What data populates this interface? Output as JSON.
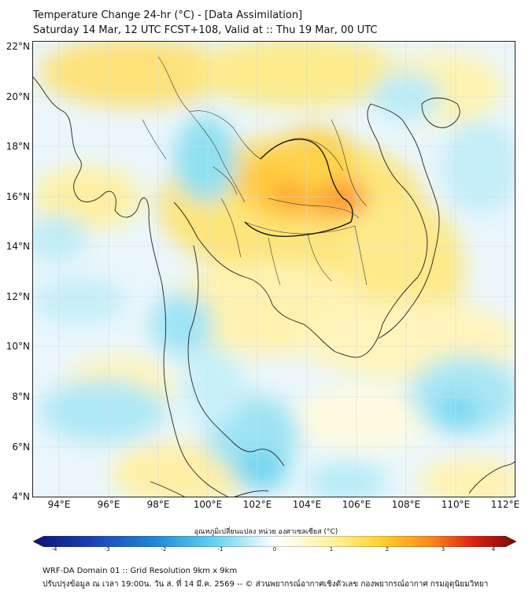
{
  "header": {
    "title": "Temperature Change 24-hr (°C) - [Data Assimilation]",
    "subtitle": "Saturday 14 Mar, 12 UTC FCST+108, Valid at :: Thu 19 Mar, 00 UTC"
  },
  "map": {
    "lat_labels": [
      "22°N",
      "20°N",
      "18°N",
      "16°N",
      "14°N",
      "12°N",
      "10°N",
      "8°N",
      "6°N",
      "4°N"
    ],
    "lon_labels": [
      "94°E",
      "96°E",
      "98°E",
      "100°E",
      "102°E",
      "104°E",
      "106°E",
      "108°E",
      "110°E",
      "112°E"
    ],
    "lat_range": [
      4,
      22.3
    ],
    "lon_range": [
      93,
      112.3
    ]
  },
  "colorbar": {
    "caption": "อุณหภูมิเปลี่ยนแปลง หน่วย องศาเซลเซียส (°C)",
    "ticks": [
      "-4",
      "-3",
      "-2",
      "-1",
      "0",
      "1",
      "2",
      "3",
      "4"
    ],
    "min": -4,
    "max": 4,
    "colors": {
      "cold_extreme": "#0b1470",
      "cold": "#1f86d8",
      "cool": "#5fd1ef",
      "neutral": "#ffffff",
      "warm": "#fff3a0",
      "warmer": "#ffd12a",
      "hot": "#ff8a1a",
      "hot_extreme": "#7a0a0a"
    }
  },
  "footer": {
    "line1": "WRF-DA Domain 01 :: Grid Resolution 9km x 9km",
    "line2": "ปรับปรุงข้อมูล ณ เวลา 19:00น. วัน ส. ที่ 14 มี.ค. 2569 -- © ส่วนพยากรณ์อากาศเชิงตัวเลข กองพยากรณ์อากาศ กรมอุตุนิยมวิทยา"
  }
}
